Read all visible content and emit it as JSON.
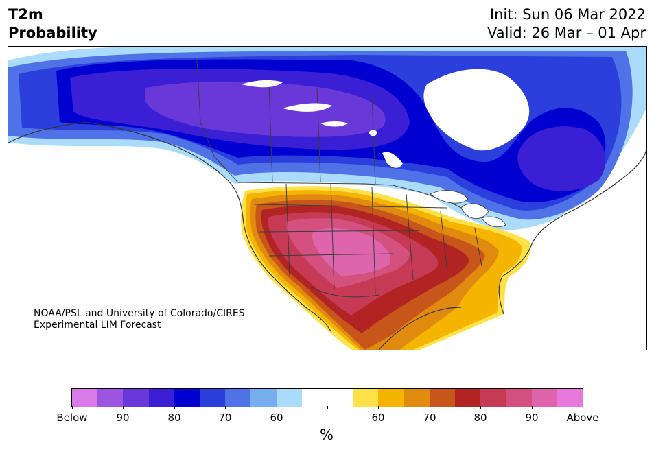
{
  "header": {
    "title_line1": "T2m",
    "title_line2": "Probability",
    "init_text": "Init: Sun 06 Mar 2022",
    "valid_text": "Valid: 26 Mar – 01 Apr"
  },
  "credit": {
    "line1": "NOAA/PSL and University of Colorado/CIRES",
    "line2": "Experimental LIM Forecast"
  },
  "colorbar": {
    "label": "%",
    "colors": [
      "#d87ae8",
      "#9b55e0",
      "#6a38d8",
      "#3a1fd4",
      "#0000d0",
      "#2a3fdc",
      "#4f72e6",
      "#76aef0",
      "#aadbfa",
      "#ffffff",
      "#ffffff",
      "#ffe14a",
      "#f4b400",
      "#e08a10",
      "#c8561a",
      "#b22424",
      "#c63a56",
      "#d4507e",
      "#de64ac",
      "#e878dc"
    ],
    "tick_labels": [
      "Below",
      "90",
      "80",
      "70",
      "60",
      "",
      "60",
      "70",
      "80",
      "90",
      "Above"
    ]
  },
  "map": {
    "cold_colors": {
      "c60": "#aadbfa",
      "c70": "#4f72e6",
      "c80": "#2a3fdc",
      "c85": "#0000d0",
      "c90": "#3a1fd4",
      "c95": "#6a38d8"
    },
    "warm_colors": {
      "w55": "#ffe14a",
      "w60": "#f4b400",
      "w65": "#e08a10",
      "w70": "#c8561a",
      "w75": "#b22424",
      "w80": "#c63a56",
      "w85": "#d4507e",
      "w90": "#de64ac"
    }
  }
}
